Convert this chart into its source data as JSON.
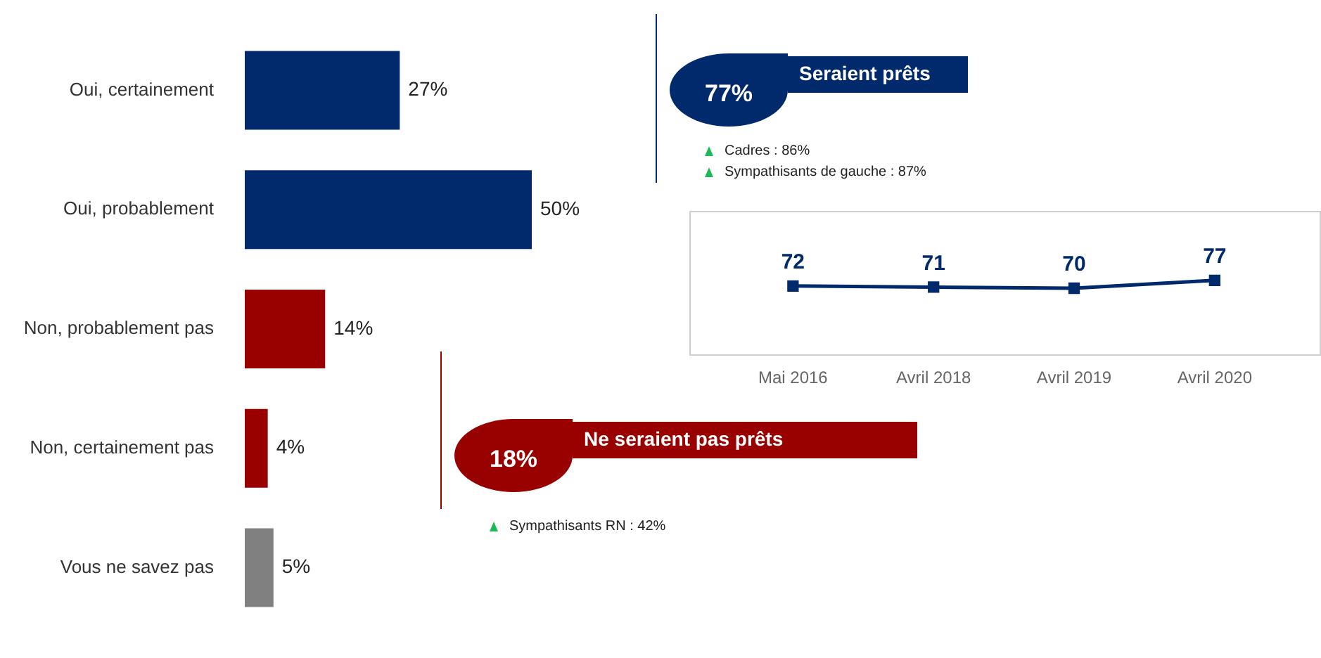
{
  "chart_data": [
    {
      "type": "bar",
      "orientation": "horizontal",
      "categories": [
        "Oui, certainement",
        "Oui, probablement",
        "Non, probablement pas",
        "Non, certainement pas",
        "Vous ne savez pas"
      ],
      "values": [
        27,
        50,
        14,
        4,
        5
      ],
      "colors": [
        "#002a6c",
        "#002a6c",
        "#990000",
        "#990000",
        "#808080"
      ],
      "value_labels": [
        "27%",
        "50%",
        "14%",
        "4%",
        "5%"
      ],
      "tick_labels": "y"
    },
    {
      "type": "other",
      "title": "Seraient prêts",
      "values": [
        77
      ],
      "value_labels": [
        "77%"
      ],
      "color": "#002a6c",
      "annotations": [
        "Cadres : 86%",
        "Sympathisants de gauche : 87%"
      ]
    },
    {
      "type": "line",
      "categories": [
        "Mai 2016",
        "Avril 2018",
        "Avril 2019",
        "Avril 2020"
      ],
      "values": [
        72,
        71,
        70,
        77
      ],
      "color": "#002a6c",
      "marker": "square",
      "data_labels": true,
      "tick_labels": "x"
    },
    {
      "type": "other",
      "title": "Ne seraient pas prêts",
      "values": [
        18
      ],
      "value_labels": [
        "18%"
      ],
      "color": "#990000",
      "annotations": [
        "Sympathisants RN : 42%"
      ]
    }
  ]
}
